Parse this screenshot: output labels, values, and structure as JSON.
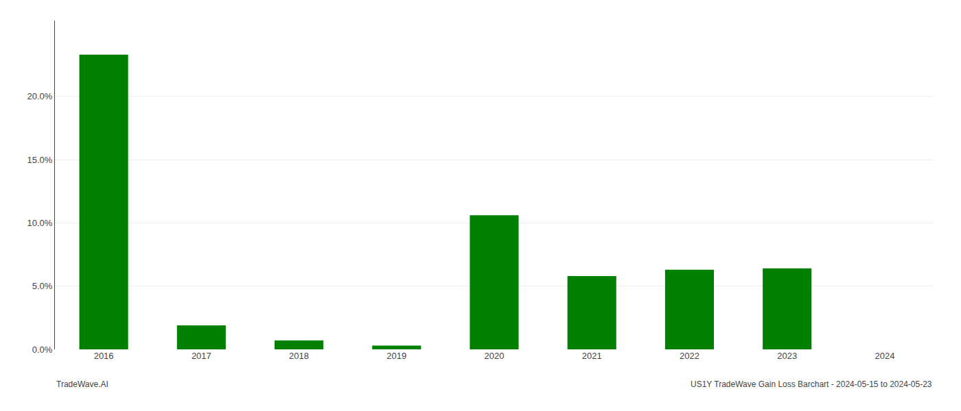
{
  "chart_data": {
    "type": "bar",
    "categories": [
      "2016",
      "2017",
      "2018",
      "2019",
      "2020",
      "2021",
      "2022",
      "2023",
      "2024"
    ],
    "values": [
      0.233,
      0.019,
      0.007,
      0.003,
      0.106,
      0.058,
      0.063,
      0.064,
      0.0
    ],
    "color": "#008000",
    "ylim": [
      0,
      0.26
    ],
    "yticks": [
      {
        "value": 0.0,
        "label": "0.0%"
      },
      {
        "value": 0.05,
        "label": "5.0%"
      },
      {
        "value": 0.1,
        "label": "10.0%"
      },
      {
        "value": 0.15,
        "label": "15.0%"
      },
      {
        "value": 0.2,
        "label": "20.0%"
      }
    ],
    "grid": true,
    "annotations": [
      "TradeWave.AI",
      "US1Y TradeWave Gain Loss Barchart - 2024-05-15 to 2024-05-23"
    ]
  }
}
